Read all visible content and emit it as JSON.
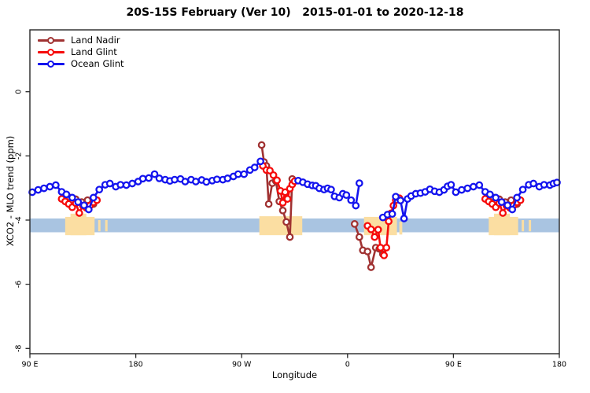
{
  "chart_data": {
    "type": "line",
    "title": "20S-15S February (Ver 10)   2015-01-01 to 2020-12-18",
    "xlabel": "Longitude",
    "ylabel": "XCO2 - MLO trend (ppm)",
    "x_axis": {
      "range": [
        90,
        540
      ],
      "note": "longitude increasing eastward, wrapping 90E-180-90W-0-90E-180",
      "ticks": [
        {
          "pos": 90,
          "label": "90 E"
        },
        {
          "pos": 180,
          "label": "180"
        },
        {
          "pos": 270,
          "label": "90 W"
        },
        {
          "pos": 360,
          "label": "0"
        },
        {
          "pos": 450,
          "label": "90 E"
        },
        {
          "pos": 540,
          "label": "180"
        }
      ]
    },
    "y_axis": {
      "range": [
        -8.2,
        1.95
      ],
      "ticks": [
        {
          "pos": 0,
          "label": "0"
        },
        {
          "pos": -2,
          "label": "-2"
        },
        {
          "pos": -4,
          "label": "-4"
        },
        {
          "pos": -6,
          "label": "-6"
        },
        {
          "pos": -8,
          "label": "-8"
        }
      ]
    },
    "reference_band": {
      "color": "#A9C4E1",
      "x_from": 90,
      "x_to": 540,
      "y_top": -3.95,
      "y_bottom": -4.38
    },
    "highlight_regions": {
      "color": "#FBDEA2",
      "blocks": [
        {
          "x_from": 120,
          "x_to": 145,
          "y_top": -3.9,
          "y_bottom": -4.47
        },
        {
          "x_from": 124.5,
          "x_to": 138,
          "y_top": -3.8,
          "y_bottom": -4.47
        },
        {
          "x_from": 148,
          "x_to": 150,
          "y_top": -4.0,
          "y_bottom": -4.35
        },
        {
          "x_from": 154,
          "x_to": 156,
          "y_top": -4.0,
          "y_bottom": -4.35
        },
        {
          "x_from": 285,
          "x_to": 321.5,
          "y_top": -3.88,
          "y_bottom": -4.47
        },
        {
          "x_from": 374,
          "x_to": 402,
          "y_top": -3.9,
          "y_bottom": -4.47
        },
        {
          "x_from": 404,
          "x_to": 406.5,
          "y_top": -4.05,
          "y_bottom": -4.45
        },
        {
          "x_from": 480,
          "x_to": 505,
          "y_top": -3.9,
          "y_bottom": -4.47
        },
        {
          "x_from": 484.5,
          "x_to": 498,
          "y_top": -3.8,
          "y_bottom": -4.47
        },
        {
          "x_from": 508,
          "x_to": 510,
          "y_top": -4.0,
          "y_bottom": -4.35
        },
        {
          "x_from": 514,
          "x_to": 516,
          "y_top": -4.0,
          "y_bottom": -4.35
        }
      ]
    },
    "series": [
      {
        "name": "Land Nadir",
        "color": "#A03232",
        "marker": "open-circle",
        "segments": [
          [
            [
              124,
              -3.3
            ],
            [
              129,
              -3.35
            ],
            [
              134,
              -3.44
            ],
            [
              139,
              -3.38
            ],
            [
              144,
              -3.5
            ]
          ],
          [
            [
              287,
              -1.66
            ],
            [
              289,
              -2.19
            ],
            [
              291,
              -2.31
            ],
            [
              293,
              -3.5
            ],
            [
              296,
              -2.85
            ],
            [
              299,
              -2.78
            ],
            [
              302,
              -3.42
            ],
            [
              305,
              -3.7
            ],
            [
              308,
              -4.06
            ],
            [
              311,
              -4.53
            ],
            [
              313,
              -2.72
            ]
          ],
          [
            [
              366,
              -4.12
            ],
            [
              370,
              -4.53
            ],
            [
              373,
              -4.94
            ],
            [
              377,
              -4.98
            ],
            [
              380,
              -5.47
            ],
            [
              384,
              -4.86
            ],
            [
              387,
              -4.9
            ],
            [
              390,
              -5.06
            ]
          ],
          [
            [
              484,
              -3.3
            ],
            [
              489,
              -3.35
            ],
            [
              494,
              -3.44
            ],
            [
              499,
              -3.38
            ],
            [
              504,
              -3.5
            ]
          ]
        ]
      },
      {
        "name": "Land Glint",
        "color": "#F60B0B",
        "marker": "open-circle",
        "segments": [
          [
            [
              117,
              -3.34
            ],
            [
              120,
              -3.42
            ],
            [
              123,
              -3.5
            ],
            [
              126,
              -3.6
            ],
            [
              129,
              -3.47
            ],
            [
              132,
              -3.78
            ],
            [
              135,
              -3.55
            ],
            [
              138,
              -3.62
            ],
            [
              141,
              -3.55
            ],
            [
              144,
              -3.45
            ],
            [
              147,
              -3.38
            ]
          ],
          [
            [
              288,
              -2.31
            ],
            [
              291,
              -2.44
            ],
            [
              294,
              -2.46
            ],
            [
              297,
              -2.6
            ],
            [
              300,
              -2.76
            ],
            [
              303,
              -3.09
            ],
            [
              305,
              -3.46
            ],
            [
              307,
              -3.13
            ],
            [
              309,
              -3.34
            ],
            [
              311,
              -3.02
            ],
            [
              313,
              -2.89
            ],
            [
              315,
              -2.79
            ]
          ],
          [
            [
              377,
              -4.18
            ],
            [
              380,
              -4.29
            ],
            [
              383,
              -4.53
            ],
            [
              386,
              -4.3
            ],
            [
              388,
              -4.86
            ],
            [
              391,
              -5.1
            ],
            [
              393,
              -4.86
            ],
            [
              395,
              -4.04
            ],
            [
              397,
              -3.79
            ],
            [
              399,
              -3.55
            ],
            [
              401,
              -3.38
            ],
            [
              404,
              -3.32
            ]
          ],
          [
            [
              477,
              -3.34
            ],
            [
              480,
              -3.42
            ],
            [
              483,
              -3.5
            ],
            [
              486,
              -3.6
            ],
            [
              489,
              -3.47
            ],
            [
              492,
              -3.78
            ],
            [
              495,
              -3.55
            ],
            [
              498,
              -3.62
            ],
            [
              501,
              -3.55
            ],
            [
              504,
              -3.45
            ],
            [
              507,
              -3.38
            ]
          ]
        ]
      },
      {
        "name": "Ocean Glint",
        "color": "#1414EE",
        "marker": "open-circle",
        "segments": [
          [
            [
              92,
              -3.13
            ],
            [
              97,
              -3.06
            ],
            [
              102,
              -3.01
            ],
            [
              107,
              -2.96
            ],
            [
              112,
              -2.91
            ],
            [
              117,
              -3.12
            ],
            [
              121,
              -3.2
            ],
            [
              126,
              -3.3
            ],
            [
              131,
              -3.44
            ],
            [
              136,
              -3.54
            ],
            [
              140,
              -3.67
            ],
            [
              144,
              -3.3
            ],
            [
              149,
              -3.05
            ],
            [
              154,
              -2.9
            ],
            [
              158,
              -2.86
            ],
            [
              163,
              -2.96
            ],
            [
              167,
              -2.9
            ],
            [
              172,
              -2.91
            ],
            [
              177,
              -2.86
            ],
            [
              182,
              -2.8
            ],
            [
              186,
              -2.71
            ],
            [
              191,
              -2.69
            ],
            [
              196,
              -2.57
            ],
            [
              200,
              -2.7
            ],
            [
              205,
              -2.74
            ],
            [
              209,
              -2.78
            ],
            [
              213,
              -2.74
            ],
            [
              218,
              -2.72
            ],
            [
              222,
              -2.8
            ],
            [
              227,
              -2.74
            ],
            [
              231,
              -2.8
            ],
            [
              236,
              -2.75
            ],
            [
              240,
              -2.81
            ],
            [
              245,
              -2.77
            ],
            [
              249,
              -2.73
            ],
            [
              254,
              -2.74
            ],
            [
              258,
              -2.7
            ],
            [
              263,
              -2.64
            ],
            [
              267,
              -2.57
            ],
            [
              272,
              -2.57
            ],
            [
              277,
              -2.44
            ],
            [
              281,
              -2.36
            ],
            [
              286,
              -2.17
            ]
          ],
          [
            [
              318,
              -2.77
            ],
            [
              322,
              -2.82
            ],
            [
              326,
              -2.88
            ],
            [
              330,
              -2.92
            ],
            [
              333,
              -2.93
            ],
            [
              336,
              -3.01
            ],
            [
              340,
              -3.05
            ],
            [
              343,
              -3.01
            ],
            [
              346,
              -3.05
            ],
            [
              349,
              -3.26
            ],
            [
              353,
              -3.3
            ],
            [
              356,
              -3.18
            ],
            [
              359,
              -3.22
            ],
            [
              363,
              -3.38
            ],
            [
              367,
              -3.55
            ],
            [
              370,
              -2.85
            ]
          ],
          [
            [
              390,
              -3.92
            ],
            [
              394,
              -3.83
            ],
            [
              398,
              -3.81
            ],
            [
              401,
              -3.27
            ],
            [
              405,
              -3.39
            ],
            [
              408,
              -3.95
            ],
            [
              411,
              -3.34
            ],
            [
              414,
              -3.25
            ],
            [
              418,
              -3.18
            ],
            [
              422,
              -3.16
            ],
            [
              426,
              -3.12
            ],
            [
              430,
              -3.04
            ],
            [
              434,
              -3.1
            ],
            [
              438,
              -3.13
            ],
            [
              442,
              -3.06
            ],
            [
              445,
              -2.95
            ],
            [
              448,
              -2.9
            ],
            [
              452,
              -3.13
            ],
            [
              457,
              -3.06
            ],
            [
              462,
              -3.01
            ],
            [
              467,
              -2.96
            ],
            [
              472,
              -2.91
            ],
            [
              477,
              -3.12
            ],
            [
              481,
              -3.2
            ],
            [
              486,
              -3.3
            ],
            [
              491,
              -3.44
            ],
            [
              496,
              -3.54
            ],
            [
              500,
              -3.67
            ],
            [
              504,
              -3.3
            ],
            [
              509,
              -3.05
            ],
            [
              514,
              -2.9
            ],
            [
              518,
              -2.86
            ],
            [
              523,
              -2.96
            ],
            [
              527,
              -2.9
            ],
            [
              532,
              -2.91
            ],
            [
              535,
              -2.86
            ],
            [
              538,
              -2.83
            ]
          ]
        ]
      }
    ],
    "legend": {
      "position": "top-left",
      "entries": [
        "Land Nadir",
        "Land Glint",
        "Ocean Glint"
      ]
    }
  }
}
